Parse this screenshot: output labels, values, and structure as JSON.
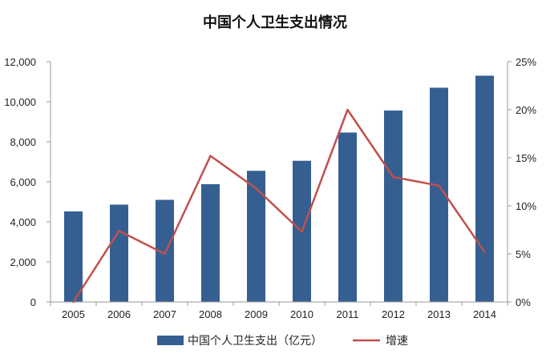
{
  "chart_data": {
    "type": "bar",
    "title": "中国个人卫生支出情况",
    "categories": [
      "2005",
      "2006",
      "2007",
      "2008",
      "2009",
      "2010",
      "2011",
      "2012",
      "2013",
      "2014"
    ],
    "series": [
      {
        "name": "中国个人卫生支出（亿元）",
        "type": "bar",
        "axis": "left",
        "color": "#365f91",
        "values": [
          4520,
          4860,
          5100,
          5880,
          6550,
          7050,
          8460,
          9560,
          10700,
          11300
        ]
      },
      {
        "name": "增速",
        "type": "line",
        "axis": "right",
        "color": "#c0504d",
        "unit": "%",
        "values": [
          0,
          7.4,
          5.0,
          15.2,
          11.8,
          7.3,
          20.0,
          13.0,
          12.1,
          5.2
        ]
      }
    ],
    "y_left": {
      "ylim": [
        0,
        12000
      ],
      "ticks": [
        0,
        2000,
        4000,
        6000,
        8000,
        10000,
        12000
      ],
      "tick_labels": [
        "0",
        "2,000",
        "4,000",
        "6,000",
        "8,000",
        "10,000",
        "12,000"
      ]
    },
    "y_right": {
      "ylim": [
        0,
        25
      ],
      "ticks": [
        0,
        5,
        10,
        15,
        20,
        25
      ],
      "tick_labels": [
        "0%",
        "5%",
        "10%",
        "15%",
        "20%",
        "25%"
      ]
    },
    "grid": false,
    "legend_position": "bottom"
  }
}
